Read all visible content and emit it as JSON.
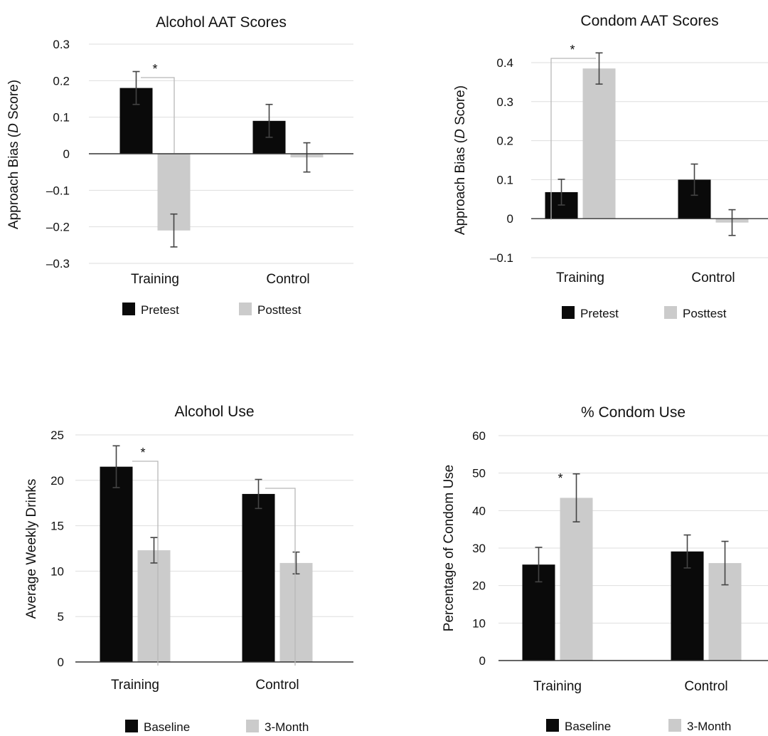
{
  "colors": {
    "series1": "#0a0a0a",
    "series2": "#cbcbcb",
    "grid": "#dedede",
    "axis": "#333333",
    "bracket": "#b8b8b8",
    "error": "#444444"
  },
  "chart_data": [
    {
      "type": "bar",
      "title": "Alcohol AAT Scores",
      "ylabel": "Approach Bias (",
      "ylabel_italic": "D",
      "ylabel_suffix": " Score)",
      "categories": [
        "Training",
        "Control"
      ],
      "series": [
        {
          "name": "Pretest",
          "values": [
            0.18,
            0.09
          ],
          "errors": [
            0.045,
            0.045
          ]
        },
        {
          "name": "Posttest",
          "values": [
            -0.21,
            -0.01
          ],
          "errors": [
            0.045,
            0.04
          ]
        }
      ],
      "ylim": [
        -0.3,
        0.3
      ],
      "yticks": [
        0.3,
        0.2,
        0.1,
        0,
        -0.1,
        -0.2,
        -0.3
      ],
      "ytick_labels": [
        "0.3",
        "0.2",
        "0.1",
        "0",
        "–0.1",
        "–0.2",
        "–0.3"
      ],
      "grid": true,
      "legend": "bottom",
      "annotations": [
        {
          "text": "*",
          "category": 0,
          "bracket": true
        }
      ]
    },
    {
      "type": "bar",
      "title": "Condom AAT Scores",
      "ylabel": "Approach Bias (",
      "ylabel_italic": "D",
      "ylabel_suffix": " Score)",
      "categories": [
        "Training",
        "Control"
      ],
      "series": [
        {
          "name": "Pretest",
          "values": [
            0.068,
            0.1
          ],
          "errors": [
            0.033,
            0.04
          ]
        },
        {
          "name": "Posttest",
          "values": [
            0.385,
            -0.01
          ],
          "errors": [
            0.04,
            0.033
          ]
        }
      ],
      "ylim": [
        -0.1,
        0.4
      ],
      "yticks": [
        0.4,
        0.3,
        0.2,
        0.1,
        0,
        -0.1
      ],
      "ytick_labels": [
        "0.4",
        "0.3",
        "0.2",
        "0.1",
        "0",
        "–0.1"
      ],
      "grid": true,
      "legend": "bottom",
      "annotations": [
        {
          "text": "*",
          "category": 0,
          "bracket": true
        }
      ]
    },
    {
      "type": "bar",
      "title": "Alcohol Use",
      "ylabel": "Average Weekly Drinks",
      "categories": [
        "Training",
        "Control"
      ],
      "series": [
        {
          "name": "Baseline",
          "values": [
            21.5,
            18.5
          ],
          "errors": [
            2.3,
            1.6
          ]
        },
        {
          "name": "3-Month",
          "values": [
            12.3,
            10.9
          ],
          "errors": [
            1.4,
            1.2
          ]
        }
      ],
      "ylim": [
        0,
        25
      ],
      "yticks": [
        25,
        20,
        15,
        10,
        5,
        0
      ],
      "ytick_labels": [
        "25",
        "20",
        "15",
        "10",
        "5",
        "0"
      ],
      "grid": true,
      "legend": "bottom",
      "annotations": [
        {
          "text": "*",
          "category": 0,
          "bracket": true
        },
        {
          "text": "*",
          "category": 1,
          "bracket": true
        }
      ]
    },
    {
      "type": "bar",
      "title": "% Condom Use",
      "ylabel": "Percentage of Condom Use",
      "categories": [
        "Training",
        "Control"
      ],
      "series": [
        {
          "name": "Baseline",
          "values": [
            25.6,
            29.1
          ],
          "errors": [
            4.6,
            4.4
          ]
        },
        {
          "name": "3-Month",
          "values": [
            43.4,
            26.0
          ],
          "errors": [
            6.4,
            5.8
          ]
        }
      ],
      "ylim": [
        0,
        60
      ],
      "yticks": [
        60,
        50,
        40,
        30,
        20,
        10,
        0
      ],
      "ytick_labels": [
        "60",
        "50",
        "40",
        "30",
        "20",
        "10",
        "0"
      ],
      "grid": true,
      "legend": "bottom",
      "annotations": [
        {
          "text": "*",
          "category": 0,
          "bracket": false
        }
      ]
    }
  ]
}
